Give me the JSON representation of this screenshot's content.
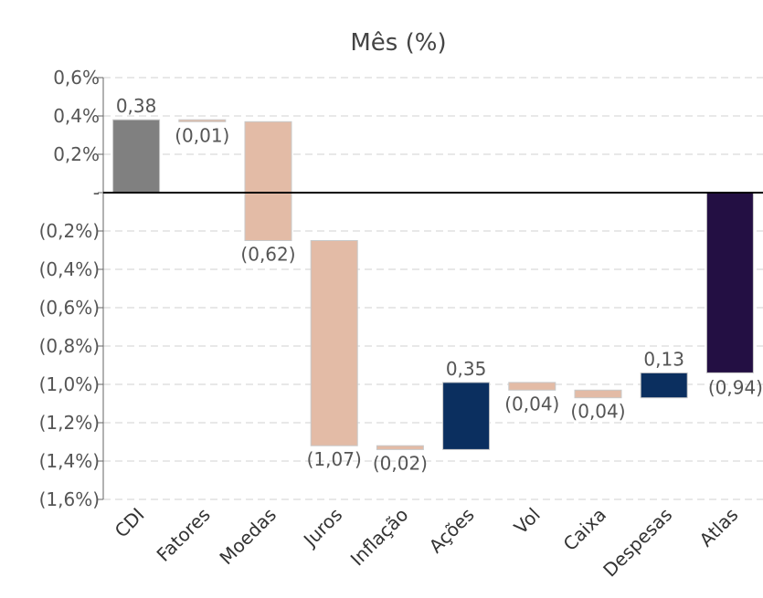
{
  "chart_data": {
    "type": "bar",
    "subtype": "waterfall",
    "title": "Mês (%)",
    "xlabel": "",
    "ylabel": "",
    "ylim": [
      -1.6,
      0.6
    ],
    "yticks": [
      {
        "value": 0.6,
        "label": "0,6%"
      },
      {
        "value": 0.4,
        "label": "0,4%"
      },
      {
        "value": 0.2,
        "label": "0,2%"
      },
      {
        "value": 0.0,
        "label": "-"
      },
      {
        "value": -0.2,
        "label": "(0,2%)"
      },
      {
        "value": -0.4,
        "label": "(0,4%)"
      },
      {
        "value": -0.6,
        "label": "(0,6%)"
      },
      {
        "value": -0.8,
        "label": "(0,8%)"
      },
      {
        "value": -1.0,
        "label": "(1,0%)"
      },
      {
        "value": -1.2,
        "label": "(1,2%)"
      },
      {
        "value": -1.4,
        "label": "(1,4%)"
      },
      {
        "value": -1.6,
        "label": "(1,6%)"
      }
    ],
    "grid": true,
    "legend": "none",
    "categories": [
      "CDI",
      "Fatores",
      "Moedas",
      "Juros",
      "Inflação",
      "Ações",
      "Vol",
      "Caixa",
      "Despesas",
      "Atlas"
    ],
    "bars": [
      {
        "category": "CDI",
        "start": 0.0,
        "end": 0.38,
        "value": 0.38,
        "label": "0,38",
        "color": "#808080"
      },
      {
        "category": "Fatores",
        "start": 0.38,
        "end": 0.37,
        "value": -0.01,
        "label": "(0,01)",
        "color": "#e3bba6"
      },
      {
        "category": "Moedas",
        "start": 0.37,
        "end": -0.25,
        "value": -0.62,
        "label": "(0,62)",
        "color": "#e3bba6"
      },
      {
        "category": "Juros",
        "start": -0.25,
        "end": -1.32,
        "value": -1.07,
        "label": "(1,07)",
        "color": "#e3bba6"
      },
      {
        "category": "Inflação",
        "start": -1.32,
        "end": -1.34,
        "value": -0.02,
        "label": "(0,02)",
        "color": "#e3bba6"
      },
      {
        "category": "Ações",
        "start": -1.34,
        "end": -0.99,
        "value": 0.35,
        "label": "0,35",
        "color": "#0b2f5f"
      },
      {
        "category": "Vol",
        "start": -0.99,
        "end": -1.03,
        "value": -0.04,
        "label": "(0,04)",
        "color": "#e3bba6"
      },
      {
        "category": "Caixa",
        "start": -1.03,
        "end": -1.07,
        "value": -0.04,
        "label": "(0,04)",
        "color": "#e3bba6"
      },
      {
        "category": "Despesas",
        "start": -1.07,
        "end": -0.94,
        "value": 0.13,
        "label": "0,13",
        "color": "#0b2f5f"
      },
      {
        "category": "Atlas",
        "start": 0.0,
        "end": -0.94,
        "value": -0.94,
        "label": "(0,94)",
        "color": "#230f43"
      }
    ]
  }
}
